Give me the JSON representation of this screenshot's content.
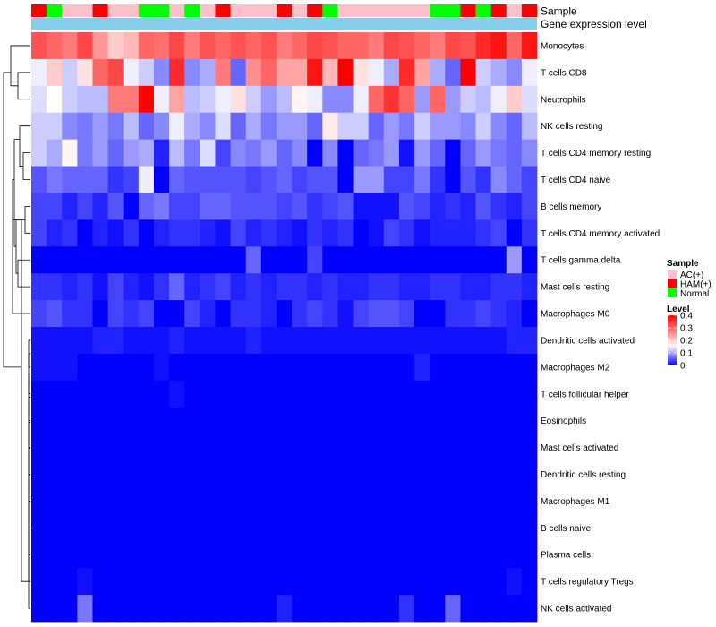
{
  "chart_data": {
    "type": "heatmap",
    "title": "",
    "track_labels": {
      "sample": "Sample",
      "gene_expression": "Gene expression level"
    },
    "gene_expression_color": "#87ceeb",
    "rows": [
      "Monocytes",
      "T cells CD8",
      "Neutrophils",
      "NK cells resting",
      "T cells CD4 memory resting",
      "T cells CD4 naive",
      "B cells memory",
      "T cells CD4 memory activated",
      "T cells gamma delta",
      "Mast cells resting",
      "Macrophages M0",
      "Dendritic cells activated",
      "Macrophages M2",
      "T cells follicular helper",
      "Eosinophils",
      "Mast cells activated",
      "Dendritic cells resting",
      "Macrophages M1",
      "B cells naive",
      "Plasma cells",
      "T cells regulatory  Tregs",
      "NK cells activated"
    ],
    "sample_groups": [
      "HAM(+)",
      "Normal",
      "AC(+)",
      "AC(+)",
      "HAM(+)",
      "AC(+)",
      "AC(+)",
      "Normal",
      "Normal",
      "AC(+)",
      "Normal",
      "AC(+)",
      "HAM(+)",
      "AC(+)",
      "AC(+)",
      "AC(+)",
      "HAM(+)",
      "AC(+)",
      "HAM(+)",
      "Normal",
      "AC(+)",
      "AC(+)",
      "AC(+)",
      "AC(+)",
      "AC(+)",
      "AC(+)",
      "Normal",
      "Normal",
      "HAM(+)",
      "Normal",
      "HAM(+)",
      "AC(+)",
      "HAM(+)"
    ],
    "values": [
      [
        0.32,
        0.3,
        0.28,
        0.33,
        0.25,
        0.2,
        0.22,
        0.3,
        0.29,
        0.33,
        0.28,
        0.32,
        0.3,
        0.32,
        0.3,
        0.32,
        0.28,
        0.3,
        0.33,
        0.32,
        0.3,
        0.3,
        0.28,
        0.33,
        0.32,
        0.3,
        0.28,
        0.33,
        0.32,
        0.36,
        0.38,
        0.3,
        0.38
      ],
      [
        0.14,
        0.2,
        0.12,
        0.18,
        0.3,
        0.33,
        0.14,
        0.12,
        0.08,
        0.36,
        0.08,
        0.1,
        0.28,
        0.06,
        0.26,
        0.3,
        0.24,
        0.24,
        0.38,
        0.22,
        0.4,
        0.18,
        0.14,
        0.1,
        0.36,
        0.24,
        0.1,
        0.06,
        0.4,
        0.12,
        0.1,
        0.08,
        0.14
      ],
      [
        0.13,
        0.15,
        0.12,
        0.11,
        0.11,
        0.28,
        0.28,
        0.4,
        0.14,
        0.24,
        0.11,
        0.12,
        0.14,
        0.18,
        0.12,
        0.09,
        0.11,
        0.16,
        0.14,
        0.08,
        0.08,
        0.14,
        0.3,
        0.35,
        0.3,
        0.09,
        0.3,
        0.09,
        0.12,
        0.11,
        0.14,
        0.2,
        0.13
      ],
      [
        0.12,
        0.12,
        0.08,
        0.07,
        0.09,
        0.07,
        0.11,
        0.06,
        0.08,
        0.14,
        0.1,
        0.08,
        0.13,
        0.06,
        0.1,
        0.07,
        0.09,
        0.09,
        0.06,
        0.17,
        0.12,
        0.12,
        0.06,
        0.09,
        0.07,
        0.12,
        0.09,
        0.09,
        0.08,
        0.12,
        0.08,
        0.06,
        0.11
      ],
      [
        0.12,
        0.1,
        0.16,
        0.07,
        0.09,
        0.06,
        0.09,
        0.1,
        0.02,
        0.11,
        0.07,
        0.13,
        0.04,
        0.08,
        0.07,
        0.09,
        0.06,
        0.08,
        0.0,
        0.08,
        0.0,
        0.06,
        0.07,
        0.09,
        0.01,
        0.09,
        0.06,
        0.0,
        0.06,
        0.09,
        0.07,
        0.06,
        0.08
      ],
      [
        0.05,
        0.07,
        0.06,
        0.06,
        0.06,
        0.03,
        0.04,
        0.14,
        0.0,
        0.06,
        0.05,
        0.05,
        0.05,
        0.05,
        0.04,
        0.05,
        0.06,
        0.04,
        0.05,
        0.05,
        0.0,
        0.09,
        0.09,
        0.04,
        0.04,
        0.07,
        0.03,
        0.0,
        0.05,
        0.03,
        0.08,
        0.06,
        0.04
      ],
      [
        0.04,
        0.04,
        0.02,
        0.04,
        0.02,
        0.05,
        0.0,
        0.06,
        0.07,
        0.04,
        0.04,
        0.06,
        0.06,
        0.05,
        0.05,
        0.05,
        0.04,
        0.05,
        0.03,
        0.04,
        0.05,
        0.01,
        0.01,
        0.01,
        0.05,
        0.04,
        0.02,
        0.03,
        0.02,
        0.05,
        0.03,
        0.02,
        0.04
      ],
      [
        0.04,
        0.02,
        0.03,
        0.0,
        0.02,
        0.01,
        0.03,
        0.0,
        0.02,
        0.03,
        0.03,
        0.02,
        0.01,
        0.04,
        0.02,
        0.03,
        0.02,
        0.01,
        0.03,
        0.02,
        0.03,
        0.0,
        0.01,
        0.04,
        0.03,
        0.01,
        0.02,
        0.02,
        0.02,
        0.03,
        0.04,
        0.0,
        0.03
      ],
      [
        0.0,
        0.0,
        0.0,
        0.0,
        0.0,
        0.0,
        0.0,
        0.0,
        0.0,
        0.0,
        0.0,
        0.0,
        0.0,
        0.0,
        0.06,
        0.0,
        0.0,
        0.0,
        0.04,
        0.0,
        0.0,
        0.0,
        0.0,
        0.0,
        0.0,
        0.0,
        0.0,
        0.0,
        0.0,
        0.0,
        0.0,
        0.09,
        0.0
      ],
      [
        0.03,
        0.03,
        0.02,
        0.03,
        0.01,
        0.04,
        0.02,
        0.01,
        0.03,
        0.06,
        0.02,
        0.03,
        0.04,
        0.02,
        0.03,
        0.02,
        0.03,
        0.03,
        0.02,
        0.03,
        0.02,
        0.02,
        0.03,
        0.03,
        0.02,
        0.02,
        0.03,
        0.03,
        0.02,
        0.02,
        0.03,
        0.03,
        0.02
      ],
      [
        0.04,
        0.05,
        0.03,
        0.03,
        0.0,
        0.04,
        0.03,
        0.04,
        0.0,
        0.0,
        0.04,
        0.02,
        0.0,
        0.03,
        0.03,
        0.02,
        0.0,
        0.03,
        0.04,
        0.03,
        0.01,
        0.04,
        0.05,
        0.05,
        0.04,
        0.0,
        0.0,
        0.03,
        0.03,
        0.04,
        0.03,
        0.02,
        0.0
      ],
      [
        0.01,
        0.01,
        0.01,
        0.01,
        0.02,
        0.02,
        0.01,
        0.01,
        0.01,
        0.02,
        0.01,
        0.01,
        0.01,
        0.01,
        0.02,
        0.01,
        0.01,
        0.01,
        0.01,
        0.01,
        0.01,
        0.01,
        0.01,
        0.01,
        0.01,
        0.01,
        0.01,
        0.01,
        0.01,
        0.01,
        0.01,
        0.02,
        0.02
      ],
      [
        0.01,
        0.01,
        0.01,
        0.0,
        0.0,
        0.0,
        0.0,
        0.0,
        0.01,
        0.0,
        0.0,
        0.0,
        0.0,
        0.0,
        0.0,
        0.0,
        0.0,
        0.0,
        0.0,
        0.0,
        0.0,
        0.0,
        0.0,
        0.0,
        0.0,
        0.02,
        0.0,
        0.0,
        0.0,
        0.0,
        0.0,
        0.0,
        0.0
      ],
      [
        0.0,
        0.0,
        0.0,
        0.0,
        0.0,
        0.0,
        0.0,
        0.0,
        0.0,
        0.01,
        0.0,
        0.0,
        0.0,
        0.0,
        0.0,
        0.0,
        0.0,
        0.0,
        0.0,
        0.0,
        0.0,
        0.0,
        0.0,
        0.0,
        0.0,
        0.0,
        0.0,
        0.0,
        0.0,
        0.0,
        0.0,
        0.0,
        0.0
      ],
      [
        0.0,
        0.0,
        0.0,
        0.0,
        0.0,
        0.0,
        0.0,
        0.0,
        0.0,
        0.0,
        0.0,
        0.0,
        0.0,
        0.0,
        0.0,
        0.0,
        0.0,
        0.0,
        0.0,
        0.0,
        0.0,
        0.0,
        0.0,
        0.0,
        0.0,
        0.0,
        0.0,
        0.0,
        0.0,
        0.0,
        0.0,
        0.0,
        0.0
      ],
      [
        0.0,
        0.0,
        0.0,
        0.0,
        0.0,
        0.0,
        0.0,
        0.0,
        0.0,
        0.0,
        0.0,
        0.0,
        0.0,
        0.0,
        0.0,
        0.0,
        0.0,
        0.0,
        0.0,
        0.0,
        0.0,
        0.0,
        0.0,
        0.0,
        0.0,
        0.0,
        0.0,
        0.0,
        0.0,
        0.0,
        0.0,
        0.0,
        0.0
      ],
      [
        0.0,
        0.0,
        0.0,
        0.0,
        0.0,
        0.0,
        0.0,
        0.0,
        0.0,
        0.0,
        0.0,
        0.0,
        0.0,
        0.0,
        0.0,
        0.0,
        0.0,
        0.0,
        0.0,
        0.0,
        0.0,
        0.0,
        0.0,
        0.0,
        0.0,
        0.0,
        0.0,
        0.0,
        0.0,
        0.0,
        0.0,
        0.0,
        0.0
      ],
      [
        0.0,
        0.0,
        0.0,
        0.0,
        0.0,
        0.0,
        0.0,
        0.0,
        0.0,
        0.0,
        0.0,
        0.0,
        0.0,
        0.0,
        0.0,
        0.0,
        0.0,
        0.0,
        0.0,
        0.0,
        0.0,
        0.0,
        0.0,
        0.0,
        0.0,
        0.0,
        0.0,
        0.0,
        0.0,
        0.0,
        0.0,
        0.0,
        0.0
      ],
      [
        0.0,
        0.0,
        0.0,
        0.0,
        0.0,
        0.0,
        0.0,
        0.0,
        0.0,
        0.0,
        0.0,
        0.0,
        0.0,
        0.0,
        0.0,
        0.0,
        0.0,
        0.0,
        0.0,
        0.0,
        0.0,
        0.0,
        0.0,
        0.0,
        0.0,
        0.0,
        0.0,
        0.0,
        0.0,
        0.0,
        0.0,
        0.0,
        0.0
      ],
      [
        0.0,
        0.0,
        0.0,
        0.0,
        0.0,
        0.0,
        0.0,
        0.0,
        0.0,
        0.0,
        0.0,
        0.0,
        0.0,
        0.0,
        0.0,
        0.0,
        0.0,
        0.0,
        0.0,
        0.0,
        0.0,
        0.0,
        0.0,
        0.0,
        0.0,
        0.0,
        0.0,
        0.0,
        0.0,
        0.0,
        0.0,
        0.0,
        0.0
      ],
      [
        0.0,
        0.0,
        0.0,
        0.01,
        0.0,
        0.0,
        0.0,
        0.0,
        0.0,
        0.0,
        0.0,
        0.0,
        0.0,
        0.0,
        0.0,
        0.0,
        0.0,
        0.0,
        0.0,
        0.0,
        0.0,
        0.0,
        0.0,
        0.0,
        0.0,
        0.0,
        0.0,
        0.0,
        0.0,
        0.0,
        0.0,
        0.01,
        0.0
      ],
      [
        0.0,
        0.0,
        0.0,
        0.07,
        0.0,
        0.0,
        0.0,
        0.0,
        0.0,
        0.0,
        0.0,
        0.0,
        0.0,
        0.0,
        0.0,
        0.0,
        0.02,
        0.0,
        0.0,
        0.0,
        0.0,
        0.0,
        0.0,
        0.0,
        0.03,
        0.0,
        0.0,
        0.06,
        0.0,
        0.0,
        0.0,
        0.0,
        0.0
      ]
    ],
    "legend": {
      "sample_title": "Sample",
      "sample_items": [
        {
          "label": "AC(+)",
          "color": "#ffc0cb"
        },
        {
          "label": "HAM(+)",
          "color": "#ff0000"
        },
        {
          "label": "Normal",
          "color": "#00ff00"
        }
      ],
      "level_title": "Level",
      "level_ticks": [
        {
          "label": "0.4",
          "value": 0.4
        },
        {
          "label": "0.3",
          "value": 0.3
        },
        {
          "label": "0.2",
          "value": 0.2
        },
        {
          "label": "0.1",
          "value": 0.1
        },
        {
          "label": "0",
          "value": 0.0
        }
      ],
      "color_low": "#0000ff",
      "color_mid": "#ffffff",
      "color_high": "#ff0000",
      "level_min": 0.0,
      "level_mid": 0.15,
      "level_max": 0.4
    }
  }
}
